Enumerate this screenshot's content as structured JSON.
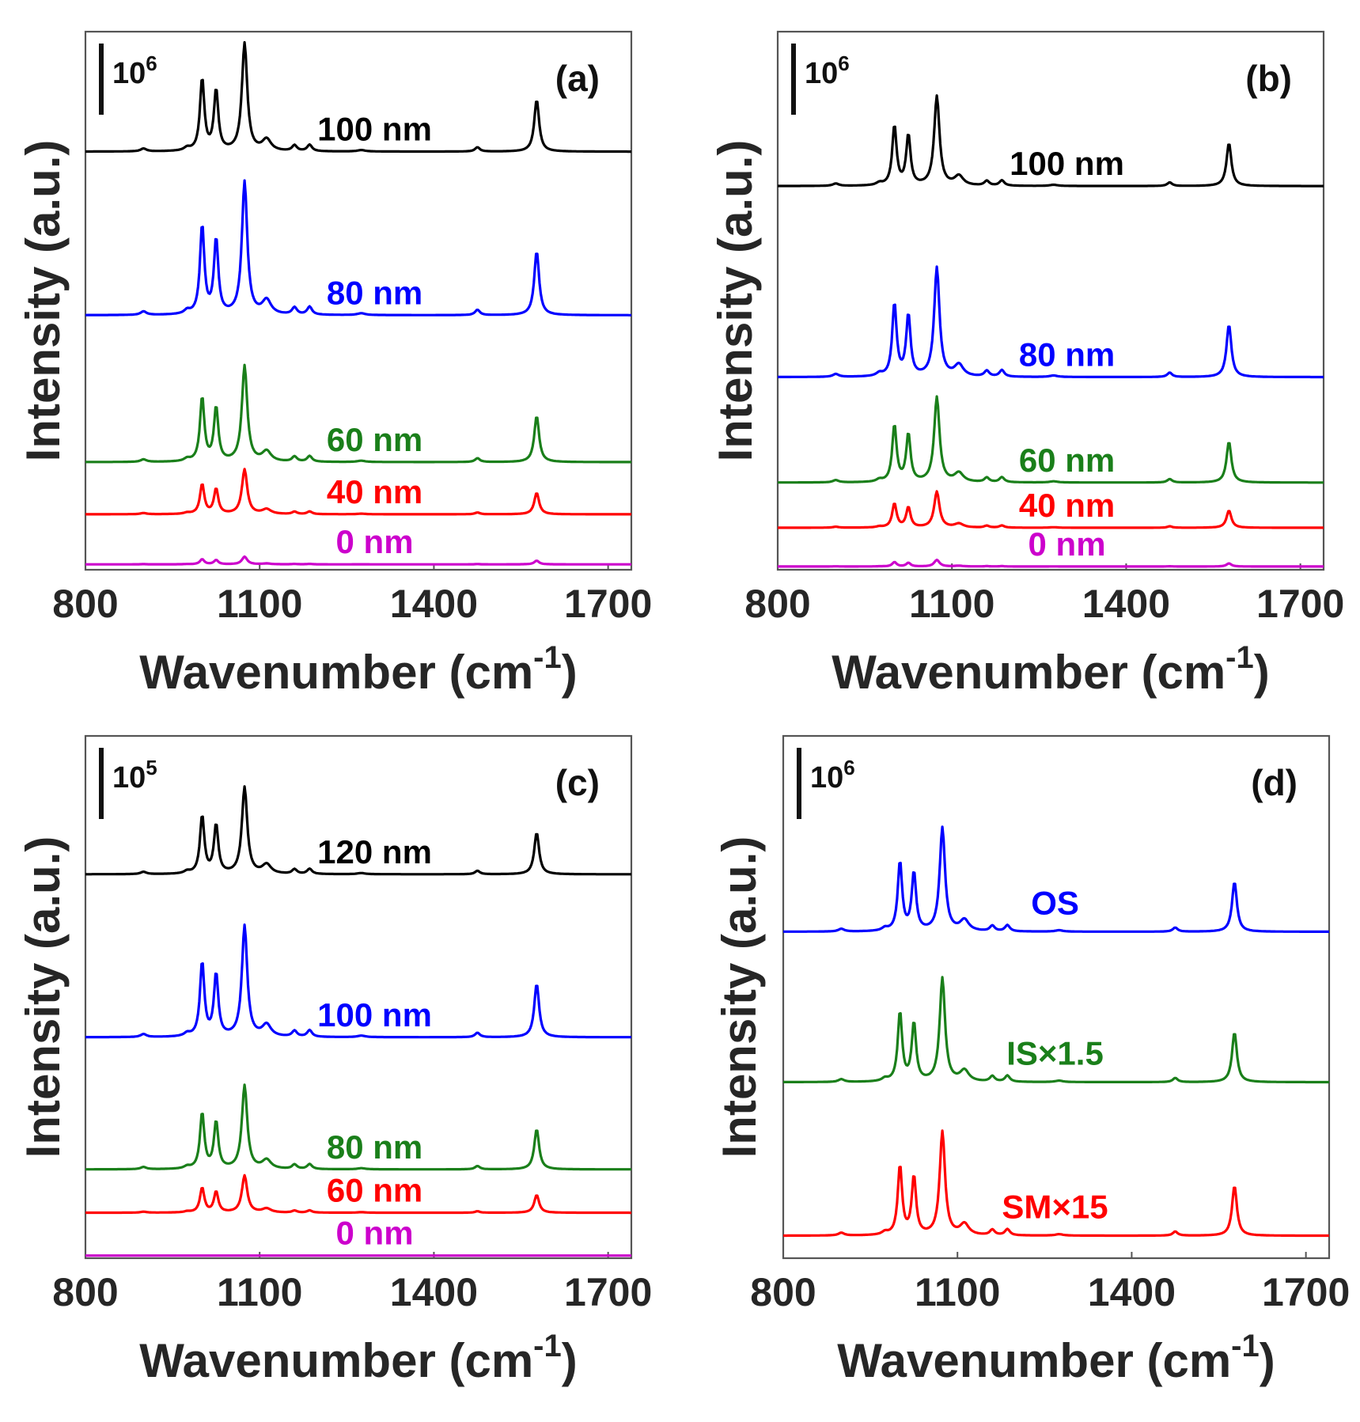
{
  "chart_data": [
    {
      "type": "line",
      "panel_label": "(a)",
      "scale_label": "10",
      "scale_exponent": "6",
      "xlabel": "Wavenumber (cm",
      "xlabel_exponent": "-1",
      "xlabel_close": ")",
      "ylabel": "Intensity (a.u.)",
      "xlim": [
        800,
        1740
      ],
      "xticks": [
        "800",
        "1100",
        "1400",
        "1700"
      ],
      "xtick_values": [
        800,
        1100,
        1400,
        1700
      ],
      "series": [
        {
          "name": "100 nm",
          "color": "#000000",
          "baseline": 0.777,
          "scale": 0.99,
          "label_x": 1298
        },
        {
          "name": "80 nm",
          "color": "#0000ff",
          "baseline": 0.473,
          "scale": 1.22,
          "label_x": 1298
        },
        {
          "name": "60 nm",
          "color": "#1a7f1a",
          "baseline": 0.2,
          "scale": 0.88,
          "label_x": 1298
        },
        {
          "name": "40 nm",
          "color": "#ff0000",
          "baseline": 0.103,
          "scale": 0.41,
          "label_x": 1298
        },
        {
          "name": "0 nm",
          "color": "#cc00cc",
          "baseline": 0.01,
          "scale": 0.07,
          "label_x": 1298
        }
      ]
    },
    {
      "type": "line",
      "panel_label": "(b)",
      "scale_label": "10",
      "scale_exponent": "6",
      "xlabel": "Wavenumber (cm",
      "xlabel_exponent": "-1",
      "xlabel_close": ")",
      "ylabel": "Intensity (a.u.)",
      "xlim": [
        800,
        1740
      ],
      "xticks": [
        "800",
        "1100",
        "1400",
        "1700"
      ],
      "xtick_values": [
        800,
        1100,
        1400,
        1700
      ],
      "series": [
        {
          "name": "100 nm",
          "color": "#000000",
          "baseline": 0.713,
          "scale": 0.82,
          "label_x": 1298
        },
        {
          "name": "80 nm",
          "color": "#0000ff",
          "baseline": 0.358,
          "scale": 1.0,
          "label_x": 1298
        },
        {
          "name": "60 nm",
          "color": "#1a7f1a",
          "baseline": 0.162,
          "scale": 0.78,
          "label_x": 1298
        },
        {
          "name": "40 nm",
          "color": "#ff0000",
          "baseline": 0.078,
          "scale": 0.33,
          "label_x": 1298
        },
        {
          "name": "0 nm",
          "color": "#cc00cc",
          "baseline": 0.006,
          "scale": 0.06,
          "label_x": 1298
        }
      ]
    },
    {
      "type": "line",
      "panel_label": "(c)",
      "scale_label": "10",
      "scale_exponent": "5",
      "xlabel": "Wavenumber (cm",
      "xlabel_exponent": "-1",
      "xlabel_close": ")",
      "ylabel": "Intensity (a.u.)",
      "xlim": [
        800,
        1740
      ],
      "xticks": [
        "800",
        "1100",
        "1400",
        "1700"
      ],
      "xtick_values": [
        800,
        1100,
        1400,
        1700
      ],
      "series": [
        {
          "name": "120 nm",
          "color": "#000000",
          "baseline": 0.735,
          "scale": 0.82,
          "label_x": 1298
        },
        {
          "name": "100 nm",
          "color": "#0000ff",
          "baseline": 0.423,
          "scale": 1.05,
          "label_x": 1298
        },
        {
          "name": "80 nm",
          "color": "#1a7f1a",
          "baseline": 0.17,
          "scale": 0.79,
          "label_x": 1298
        },
        {
          "name": "60 nm",
          "color": "#ff0000",
          "baseline": 0.087,
          "scale": 0.35,
          "label_x": 1298
        },
        {
          "name": "0 nm",
          "color": "#cc00cc",
          "baseline": 0.005,
          "scale": 0.0,
          "label_x": 1298
        }
      ]
    },
    {
      "type": "line",
      "panel_label": "(d)",
      "scale_label": "10",
      "scale_exponent": "6",
      "xlabel": "Wavenumber (cm",
      "xlabel_exponent": "-1",
      "xlabel_close": ")",
      "ylabel": "Intensity (a.u.)",
      "xlim": [
        800,
        1740
      ],
      "xticks": [
        "800",
        "1100",
        "1400",
        "1700"
      ],
      "xtick_values": [
        800,
        1100,
        1400,
        1700
      ],
      "series": [
        {
          "name": "OS",
          "color": "#0000ff",
          "baseline": 0.625,
          "scale": 0.98,
          "label_x": 1268
        },
        {
          "name": "IS×1.5",
          "color": "#1a7f1a",
          "baseline": 0.337,
          "scale": 0.98,
          "label_x": 1268
        },
        {
          "name": "SM×15",
          "color": "#ff0000",
          "baseline": 0.043,
          "scale": 0.98,
          "label_x": 1268
        }
      ]
    }
  ],
  "raman_peaks": {
    "center": [
      900,
      975,
      1001,
      1025,
      1074,
      1112,
      1160,
      1186,
      1275,
      1475,
      1577
    ],
    "height": [
      0.02,
      0.02,
      0.5,
      0.42,
      0.75,
      0.08,
      0.04,
      0.045,
      0.01,
      0.03,
      0.36
    ],
    "width": [
      6,
      6,
      4.5,
      4.5,
      5.5,
      9,
      5,
      5,
      8,
      5,
      5
    ]
  }
}
